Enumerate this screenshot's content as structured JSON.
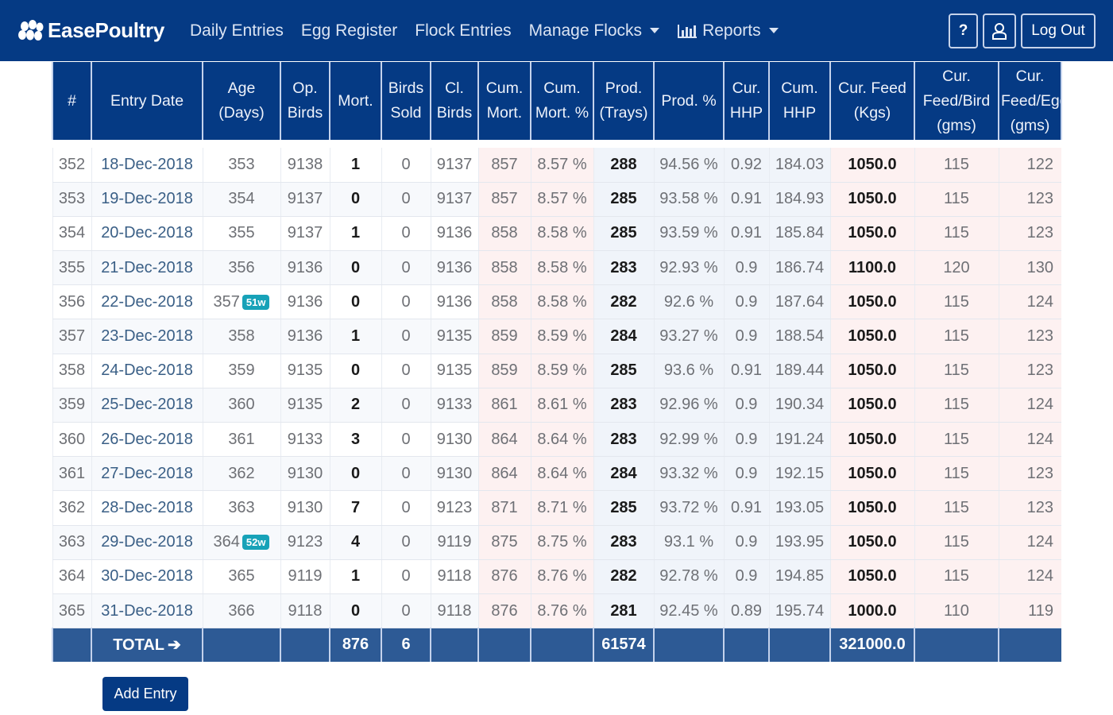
{
  "app": {
    "brand": "EasePoultry",
    "brand_icon": "eggs-logo-icon",
    "accent_color": "#053a84",
    "badge_color": "#17a2b8"
  },
  "nav": {
    "links": [
      {
        "label": "Daily Entries"
      },
      {
        "label": "Egg Register"
      },
      {
        "label": "Flock Entries"
      },
      {
        "label": "Manage Flocks",
        "dropdown": true
      },
      {
        "label": "Reports",
        "dropdown": true,
        "icon": "bar-chart-icon"
      }
    ],
    "help_label": "?",
    "user_icon": "user-icon",
    "logout_label": "Log Out"
  },
  "table": {
    "headers": [
      "#",
      "Entry Date",
      "Age (Days)",
      "Op. Birds",
      "Mort.",
      "Birds Sold",
      "Cl. Birds",
      "Cum. Mort.",
      "Cum. Mort. %",
      "Prod. (Trays)",
      "Prod. %",
      "Cur. HHP",
      "Cum. HHP",
      "Cur. Feed (Kgs)",
      "Cur. Feed/Bird (gms)",
      "Cur. Feed/Egg (gms)"
    ],
    "rows": [
      {
        "num": "352",
        "date": "18-Dec-2018",
        "age": "353",
        "badge": "",
        "op_birds": "9138",
        "mort": "1",
        "sold": "0",
        "cl_birds": "9137",
        "cum_mort": "857",
        "cum_mort_pct": "8.57 %",
        "prod": "288",
        "prod_pct": "94.56 %",
        "cur_hhp": "0.92",
        "cum_hhp": "184.03",
        "feed": "1050.0",
        "feed_bird": "115",
        "feed_egg": "122"
      },
      {
        "num": "353",
        "date": "19-Dec-2018",
        "age": "354",
        "badge": "",
        "op_birds": "9137",
        "mort": "0",
        "sold": "0",
        "cl_birds": "9137",
        "cum_mort": "857",
        "cum_mort_pct": "8.57 %",
        "prod": "285",
        "prod_pct": "93.58 %",
        "cur_hhp": "0.91",
        "cum_hhp": "184.93",
        "feed": "1050.0",
        "feed_bird": "115",
        "feed_egg": "123"
      },
      {
        "num": "354",
        "date": "20-Dec-2018",
        "age": "355",
        "badge": "",
        "op_birds": "9137",
        "mort": "1",
        "sold": "0",
        "cl_birds": "9136",
        "cum_mort": "858",
        "cum_mort_pct": "8.58 %",
        "prod": "285",
        "prod_pct": "93.59 %",
        "cur_hhp": "0.91",
        "cum_hhp": "185.84",
        "feed": "1050.0",
        "feed_bird": "115",
        "feed_egg": "123"
      },
      {
        "num": "355",
        "date": "21-Dec-2018",
        "age": "356",
        "badge": "",
        "op_birds": "9136",
        "mort": "0",
        "sold": "0",
        "cl_birds": "9136",
        "cum_mort": "858",
        "cum_mort_pct": "8.58 %",
        "prod": "283",
        "prod_pct": "92.93 %",
        "cur_hhp": "0.9",
        "cum_hhp": "186.74",
        "feed": "1100.0",
        "feed_bird": "120",
        "feed_egg": "130"
      },
      {
        "num": "356",
        "date": "22-Dec-2018",
        "age": "357",
        "badge": "51w",
        "op_birds": "9136",
        "mort": "0",
        "sold": "0",
        "cl_birds": "9136",
        "cum_mort": "858",
        "cum_mort_pct": "8.58 %",
        "prod": "282",
        "prod_pct": "92.6 %",
        "cur_hhp": "0.9",
        "cum_hhp": "187.64",
        "feed": "1050.0",
        "feed_bird": "115",
        "feed_egg": "124"
      },
      {
        "num": "357",
        "date": "23-Dec-2018",
        "age": "358",
        "badge": "",
        "op_birds": "9136",
        "mort": "1",
        "sold": "0",
        "cl_birds": "9135",
        "cum_mort": "859",
        "cum_mort_pct": "8.59 %",
        "prod": "284",
        "prod_pct": "93.27 %",
        "cur_hhp": "0.9",
        "cum_hhp": "188.54",
        "feed": "1050.0",
        "feed_bird": "115",
        "feed_egg": "123"
      },
      {
        "num": "358",
        "date": "24-Dec-2018",
        "age": "359",
        "badge": "",
        "op_birds": "9135",
        "mort": "0",
        "sold": "0",
        "cl_birds": "9135",
        "cum_mort": "859",
        "cum_mort_pct": "8.59 %",
        "prod": "285",
        "prod_pct": "93.6 %",
        "cur_hhp": "0.91",
        "cum_hhp": "189.44",
        "feed": "1050.0",
        "feed_bird": "115",
        "feed_egg": "123"
      },
      {
        "num": "359",
        "date": "25-Dec-2018",
        "age": "360",
        "badge": "",
        "op_birds": "9135",
        "mort": "2",
        "sold": "0",
        "cl_birds": "9133",
        "cum_mort": "861",
        "cum_mort_pct": "8.61 %",
        "prod": "283",
        "prod_pct": "92.96 %",
        "cur_hhp": "0.9",
        "cum_hhp": "190.34",
        "feed": "1050.0",
        "feed_bird": "115",
        "feed_egg": "124"
      },
      {
        "num": "360",
        "date": "26-Dec-2018",
        "age": "361",
        "badge": "",
        "op_birds": "9133",
        "mort": "3",
        "sold": "0",
        "cl_birds": "9130",
        "cum_mort": "864",
        "cum_mort_pct": "8.64 %",
        "prod": "283",
        "prod_pct": "92.99 %",
        "cur_hhp": "0.9",
        "cum_hhp": "191.24",
        "feed": "1050.0",
        "feed_bird": "115",
        "feed_egg": "124"
      },
      {
        "num": "361",
        "date": "27-Dec-2018",
        "age": "362",
        "badge": "",
        "op_birds": "9130",
        "mort": "0",
        "sold": "0",
        "cl_birds": "9130",
        "cum_mort": "864",
        "cum_mort_pct": "8.64 %",
        "prod": "284",
        "prod_pct": "93.32 %",
        "cur_hhp": "0.9",
        "cum_hhp": "192.15",
        "feed": "1050.0",
        "feed_bird": "115",
        "feed_egg": "123"
      },
      {
        "num": "362",
        "date": "28-Dec-2018",
        "age": "363",
        "badge": "",
        "op_birds": "9130",
        "mort": "7",
        "sold": "0",
        "cl_birds": "9123",
        "cum_mort": "871",
        "cum_mort_pct": "8.71 %",
        "prod": "285",
        "prod_pct": "93.72 %",
        "cur_hhp": "0.91",
        "cum_hhp": "193.05",
        "feed": "1050.0",
        "feed_bird": "115",
        "feed_egg": "123"
      },
      {
        "num": "363",
        "date": "29-Dec-2018",
        "age": "364",
        "badge": "52w",
        "op_birds": "9123",
        "mort": "4",
        "sold": "0",
        "cl_birds": "9119",
        "cum_mort": "875",
        "cum_mort_pct": "8.75 %",
        "prod": "283",
        "prod_pct": "93.1 %",
        "cur_hhp": "0.9",
        "cum_hhp": "193.95",
        "feed": "1050.0",
        "feed_bird": "115",
        "feed_egg": "124"
      },
      {
        "num": "364",
        "date": "30-Dec-2018",
        "age": "365",
        "badge": "",
        "op_birds": "9119",
        "mort": "1",
        "sold": "0",
        "cl_birds": "9118",
        "cum_mort": "876",
        "cum_mort_pct": "8.76 %",
        "prod": "282",
        "prod_pct": "92.78 %",
        "cur_hhp": "0.9",
        "cum_hhp": "194.85",
        "feed": "1050.0",
        "feed_bird": "115",
        "feed_egg": "124"
      },
      {
        "num": "365",
        "date": "31-Dec-2018",
        "age": "366",
        "badge": "",
        "op_birds": "9118",
        "mort": "0",
        "sold": "0",
        "cl_birds": "9118",
        "cum_mort": "876",
        "cum_mort_pct": "8.76 %",
        "prod": "281",
        "prod_pct": "92.45 %",
        "cur_hhp": "0.89",
        "cum_hhp": "195.74",
        "feed": "1000.0",
        "feed_bird": "110",
        "feed_egg": "119"
      }
    ],
    "totals": {
      "label": "TOTAL",
      "label_icon": "arrow-right-icon",
      "mort": "876",
      "sold": "6",
      "prod": "61574",
      "feed": "321000.0"
    }
  },
  "actions": {
    "add_entry_label": "Add Entry"
  }
}
